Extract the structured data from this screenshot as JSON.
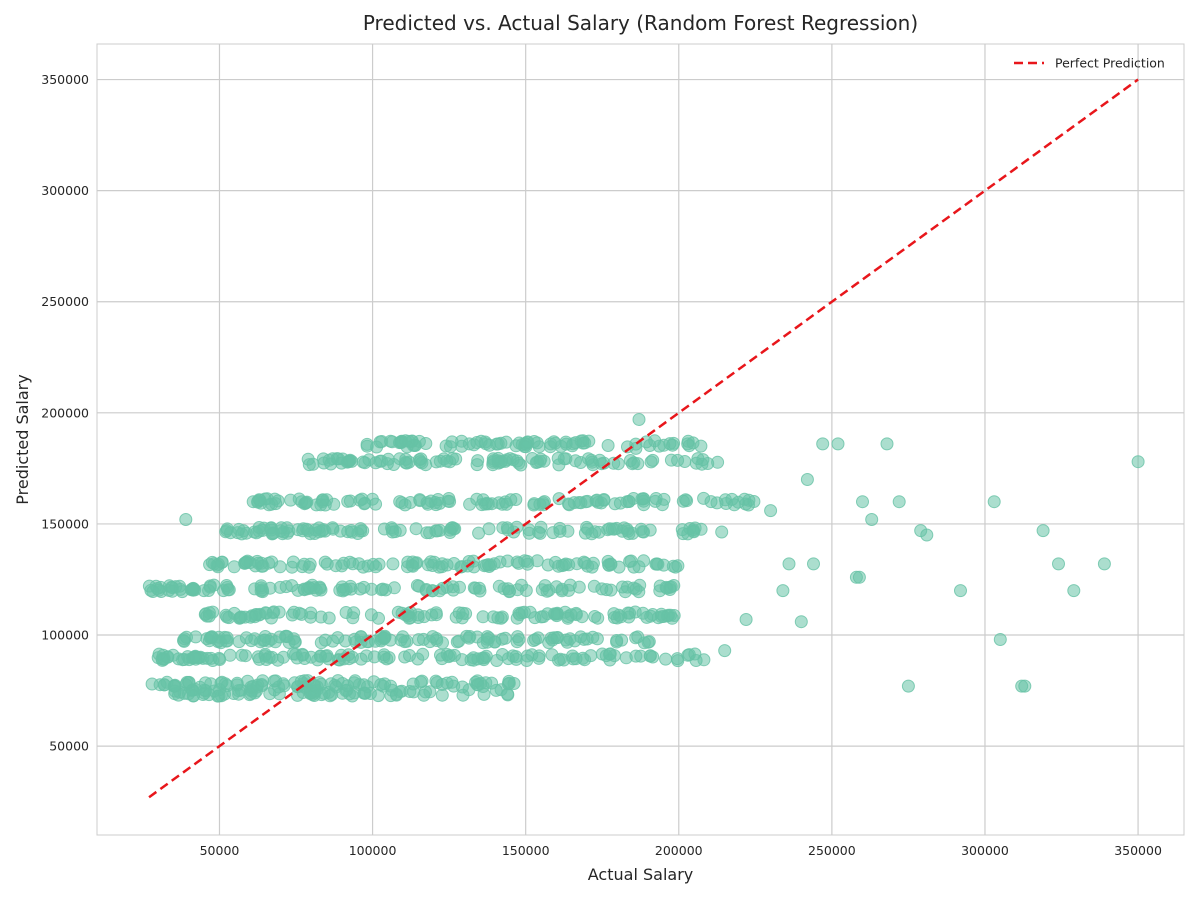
{
  "chart_data": {
    "type": "scatter",
    "title": "Predicted vs. Actual Salary (Random Forest Regression)",
    "xlabel": "Actual Salary",
    "ylabel": "Predicted Salary",
    "xlim": [
      10000,
      365000
    ],
    "ylim": [
      10000,
      366000
    ],
    "x_ticks": [
      50000,
      100000,
      150000,
      200000,
      250000,
      300000,
      350000
    ],
    "y_ticks": [
      50000,
      100000,
      150000,
      200000,
      250000,
      300000,
      350000
    ],
    "x_tick_labels": [
      "50000",
      "100000",
      "150000",
      "200000",
      "250000",
      "300000",
      "350000"
    ],
    "y_tick_labels": [
      "50000",
      "100000",
      "150000",
      "200000",
      "250000",
      "300000",
      "350000"
    ],
    "grid": true,
    "legend": {
      "position": "top-right",
      "entries": [
        "Perfect Prediction"
      ]
    },
    "reference_line": {
      "name": "Perfect Prediction",
      "x": [
        27000,
        350000
      ],
      "y": [
        27000,
        350000
      ],
      "color": "#e8161b",
      "style": "dashed"
    },
    "point_color": "#66c2a5",
    "series": [
      {
        "prediction_levels": [
          74000,
          78000,
          90000,
          98000,
          109000,
          121000,
          132000,
          147000,
          160000,
          178000,
          186000
        ],
        "band_x_ranges": [
          [
            35000,
            150000
          ],
          [
            28000,
            150000
          ],
          [
            30000,
            210000
          ],
          [
            36000,
            195000
          ],
          [
            45000,
            200000
          ],
          [
            27000,
            200000
          ],
          [
            45000,
            200000
          ],
          [
            52000,
            215000
          ],
          [
            62000,
            225000
          ],
          [
            78000,
            215000
          ],
          [
            97000,
            210000
          ]
        ],
        "x": [
          39000,
          61000,
          187000,
          186000,
          350000,
          303000,
          292000,
          305000,
          312000,
          313000,
          275000,
          339000,
          324000,
          329000,
          319000,
          279000,
          281000,
          272000,
          268000,
          260000,
          240000,
          244000,
          247000,
          252000,
          222000,
          215000,
          230000,
          236000,
          242000,
          263000,
          258000,
          259000,
          234000
        ],
        "y": [
          152000,
          160000,
          197000,
          184000,
          178000,
          160000,
          120000,
          98000,
          77000,
          77000,
          77000,
          132000,
          132000,
          120000,
          147000,
          147000,
          145000,
          160000,
          186000,
          160000,
          106000,
          132000,
          186000,
          186000,
          107000,
          93000,
          156000,
          132000,
          170000,
          152000,
          126000,
          126000,
          120000
        ]
      }
    ]
  }
}
